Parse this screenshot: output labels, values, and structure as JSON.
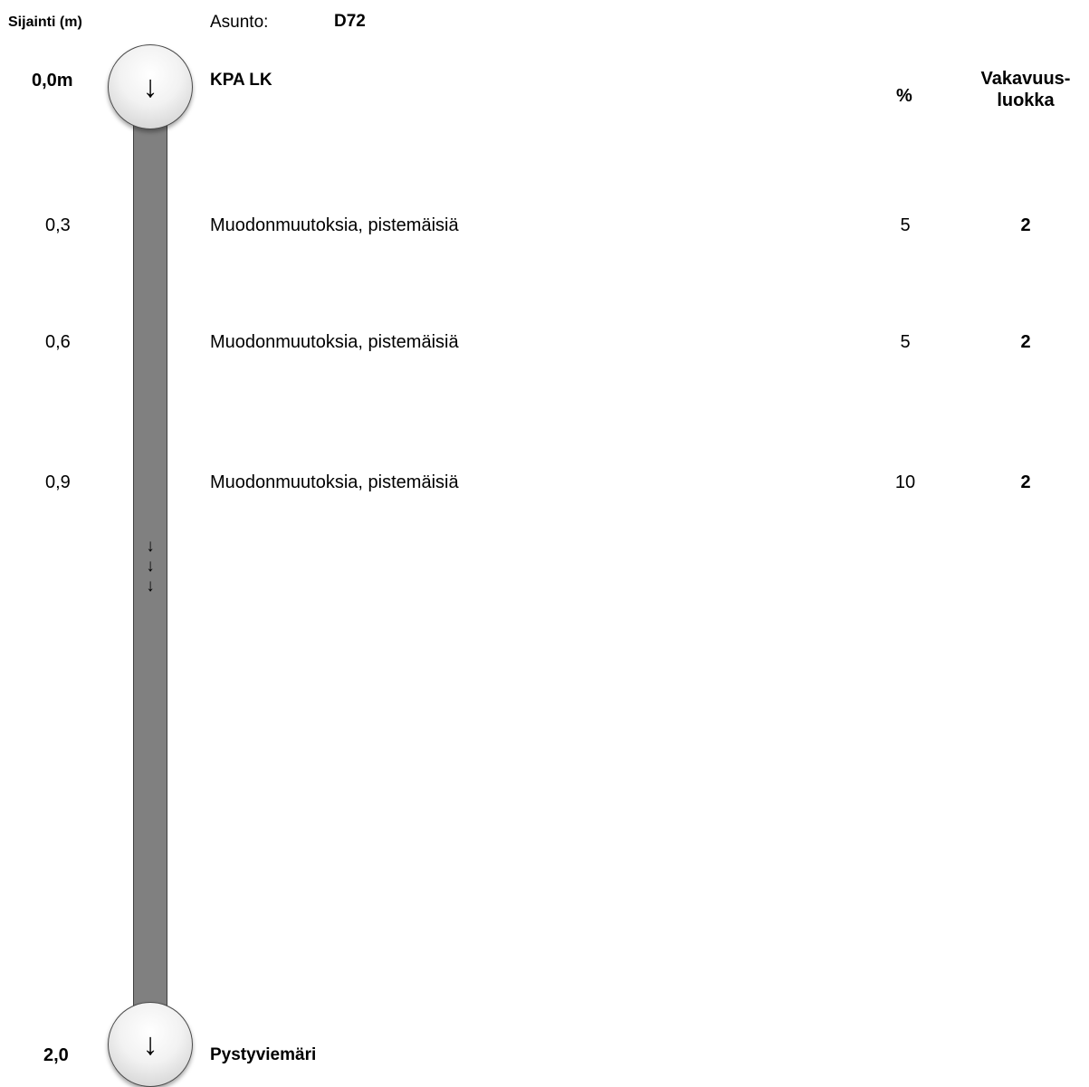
{
  "header": {
    "position_label": "Sijainti (m)",
    "apartment_label": "Asunto:",
    "apartment_value": "D72"
  },
  "columns": {
    "percent": "%",
    "severity_line1": "Vakavuus-",
    "severity_line2": "luokka"
  },
  "start": {
    "position": "0,0m",
    "label": "KPA LK",
    "icon": "down-arrow-icon"
  },
  "findings": [
    {
      "position": "0,3",
      "description": "Muodonmuutoksia, pistemäisiä",
      "percent": "5",
      "severity": "2"
    },
    {
      "position": "0,6",
      "description": "Muodonmuutoksia, pistemäisiä",
      "percent": "5",
      "severity": "2"
    },
    {
      "position": "0,9",
      "description": "Muodonmuutoksia, pistemäisiä",
      "percent": "10",
      "severity": "2"
    }
  ],
  "flow": {
    "arrows": [
      "↓",
      "↓",
      "↓"
    ]
  },
  "end": {
    "position": "2,0",
    "label": "Pystyviemäri",
    "icon": "down-arrow-icon"
  },
  "node_glyph": "↓",
  "colors": {
    "pipe": "#808080",
    "node_fill": "#f2f2f2"
  }
}
